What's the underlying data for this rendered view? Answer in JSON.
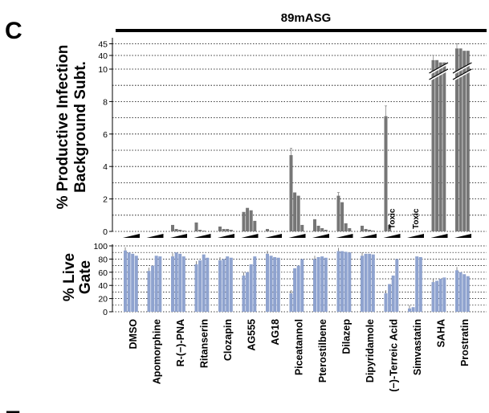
{
  "figure": {
    "panel_label": "C",
    "next_panel_label": "E",
    "title": "89mASG"
  },
  "chart_data": [
    {
      "type": "bar",
      "ylabel": "% Productive Infection Background Subt.",
      "y_ticks": [
        "0",
        "2",
        "4",
        "6",
        "8",
        "10",
        "40",
        "45"
      ],
      "y_axis_break": "between 10 and 40",
      "grid": "dotted horizontal",
      "categories": [
        "DMSO",
        "Apomorphine",
        "R-(−)-PNA",
        "Ritanserin",
        "Clozapin",
        "AG555",
        "AG18",
        "Piceatannol",
        "Pterostilbene",
        "Dilazep",
        "Dipyridamole",
        "(−)-Terreic Acid",
        "Simvastatin",
        "SAHA",
        "Prostratin"
      ],
      "bars_per_category": 4,
      "annotations": [
        {
          "category": "(−)-Terreic Acid",
          "text": "Toxic"
        },
        {
          "category": "Simvastatin",
          "text": "Toxic"
        }
      ],
      "values": [
        [
          0,
          0,
          0,
          0
        ],
        [
          0,
          0,
          0,
          0
        ],
        [
          0.4,
          0.15,
          0.1,
          0.05
        ],
        [
          0.55,
          0.1,
          0.05,
          0
        ],
        [
          0.3,
          0.15,
          0.15,
          0.1
        ],
        [
          1.2,
          1.45,
          1.3,
          0.65
        ],
        [
          0.15,
          0.05,
          0,
          0
        ],
        [
          4.7,
          2.4,
          2.2,
          0.4
        ],
        [
          0.75,
          0.35,
          0.2,
          0.1
        ],
        [
          2.2,
          1.8,
          0.5,
          0.2
        ],
        [
          0.35,
          0.15,
          0.1,
          0.05
        ],
        [
          7.1,
          0.4,
          null,
          null
        ],
        [
          null,
          null,
          null,
          null
        ],
        [
          38,
          38,
          37,
          37
        ],
        [
          43,
          43,
          42,
          42
        ]
      ]
    },
    {
      "type": "bar",
      "ylabel": "% Live Gate",
      "y_ticks": [
        "0",
        "20",
        "40",
        "60",
        "80",
        "100"
      ],
      "ylim": [
        0,
        100
      ],
      "grid": "dotted horizontal",
      "color": "#8fa3cf",
      "categories": [
        "DMSO",
        "Apomorphine",
        "R-(−)-PNA",
        "Ritanserin",
        "Clozapin",
        "AG555",
        "AG18",
        "Piceatannol",
        "Pterostilbene",
        "Dilazep",
        "Dipyridamole",
        "(−)-Terreic Acid",
        "Simvastatin",
        "SAHA",
        "Prostratin"
      ],
      "values": [
        [
          93,
          90,
          88,
          85
        ],
        [
          62,
          70,
          85,
          84
        ],
        [
          84,
          90,
          88,
          84
        ],
        [
          72,
          78,
          87,
          82
        ],
        [
          78,
          80,
          84,
          82
        ],
        [
          55,
          60,
          72,
          84
        ],
        [
          88,
          85,
          83,
          82
        ],
        [
          28,
          66,
          70,
          80
        ],
        [
          80,
          83,
          84,
          82
        ],
        [
          92,
          92,
          91,
          90
        ],
        [
          85,
          88,
          88,
          87
        ],
        [
          28,
          42,
          55,
          80
        ],
        [
          5,
          7,
          84,
          83
        ],
        [
          45,
          47,
          50,
          52
        ],
        [
          63,
          60,
          57,
          54
        ]
      ]
    }
  ],
  "colors": {
    "top_bars": "#767676",
    "bottom_bars": "#8fa3cf",
    "error_bar_top": "#8a8a8a"
  }
}
